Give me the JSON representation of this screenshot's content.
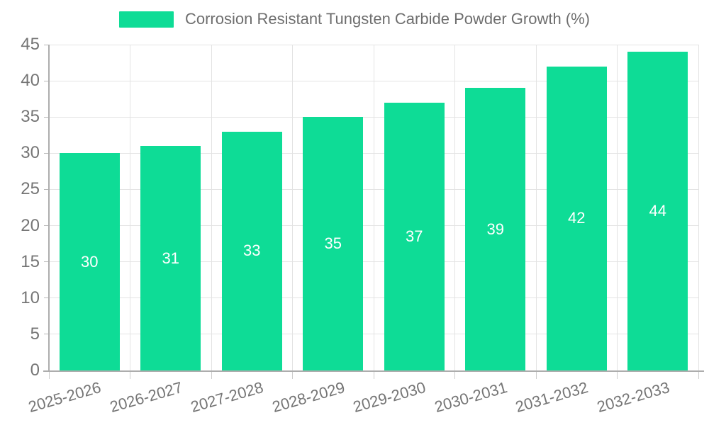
{
  "chart_data": {
    "type": "bar",
    "legend_label": "Corrosion Resistant Tungsten Carbide Powder Growth (%)",
    "categories": [
      "2025-2026",
      "2026-2027",
      "2027-2028",
      "2028-2029",
      "2029-2030",
      "2030-2031",
      "2031-2032",
      "2032-2033"
    ],
    "values": [
      30,
      31,
      33,
      35,
      37,
      39,
      42,
      44
    ],
    "value_labels": [
      "30",
      "31",
      "33",
      "35",
      "37",
      "39",
      "42",
      "44"
    ],
    "ylim": [
      0,
      45
    ],
    "yticks": [
      0,
      5,
      10,
      15,
      20,
      25,
      30,
      35,
      40,
      45
    ],
    "xlabel": "",
    "ylabel": "",
    "grid": true,
    "legend_position": "top",
    "colors": {
      "bar": "#0edc96",
      "bar_label": "#ffffff",
      "grid": "#e3e3e3",
      "axis": "#adadad",
      "tick_text": "#757575",
      "legend_text": "#6e6e6e",
      "background": "#ffffff"
    }
  }
}
